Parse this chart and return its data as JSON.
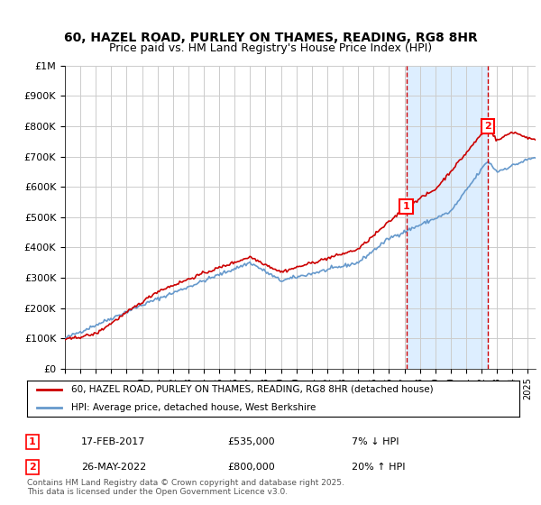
{
  "title": "60, HAZEL ROAD, PURLEY ON THAMES, READING, RG8 8HR",
  "subtitle": "Price paid vs. HM Land Registry's House Price Index (HPI)",
  "ylabel_ticks": [
    "£0",
    "£100K",
    "£200K",
    "£300K",
    "£400K",
    "£500K",
    "£600K",
    "£700K",
    "£800K",
    "£900K",
    "£1M"
  ],
  "ylim": [
    0,
    1000000
  ],
  "ytick_values": [
    0,
    100000,
    200000,
    300000,
    400000,
    500000,
    600000,
    700000,
    800000,
    900000,
    1000000
  ],
  "x_start_year": 1995,
  "x_end_year": 2025,
  "sale1_x": 2017.12,
  "sale1_price": 535000,
  "sale2_x": 2022.4,
  "sale2_price": 800000,
  "line_color_red": "#cc0000",
  "line_color_blue": "#6699cc",
  "shaded_color": "#ddeeff",
  "grid_color": "#cccccc",
  "legend1_text": "60, HAZEL ROAD, PURLEY ON THAMES, READING, RG8 8HR (detached house)",
  "legend2_text": "HPI: Average price, detached house, West Berkshire",
  "annotation1_date": "17-FEB-2017",
  "annotation1_price": "£535,000",
  "annotation1_pct": "7% ↓ HPI",
  "annotation2_date": "26-MAY-2022",
  "annotation2_price": "£800,000",
  "annotation2_pct": "20% ↑ HPI",
  "footnote": "Contains HM Land Registry data © Crown copyright and database right 2025.\nThis data is licensed under the Open Government Licence v3.0.",
  "background_color": "#ffffff"
}
